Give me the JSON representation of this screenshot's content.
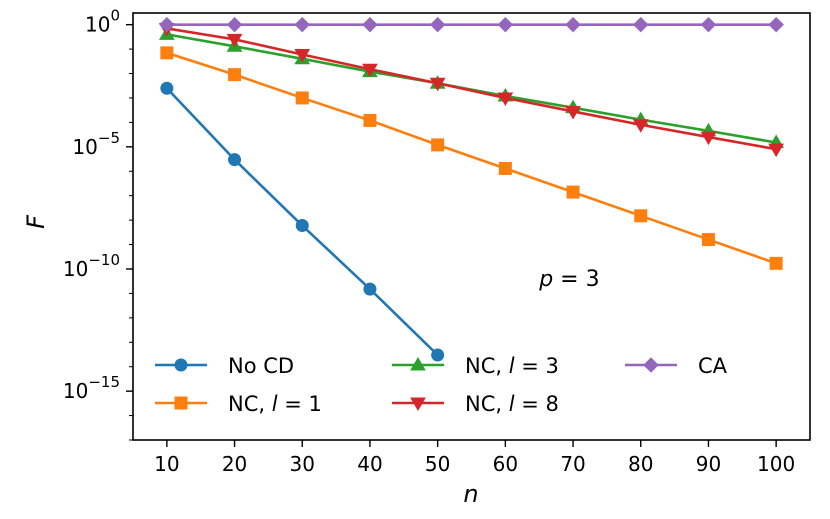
{
  "chart_data": {
    "type": "line",
    "title": "",
    "xlabel": "n",
    "ylabel": "F",
    "yscale": "log",
    "xlim": [
      5,
      105
    ],
    "ylim": [
      1e-17,
      3
    ],
    "x_ticks": [
      10,
      20,
      30,
      40,
      50,
      60,
      70,
      80,
      90,
      100
    ],
    "y_ticks": [
      {
        "value": 1,
        "base": "10",
        "exp": "0"
      },
      {
        "value": 1e-05,
        "base": "10",
        "exp": "−5"
      },
      {
        "value": 1e-10,
        "base": "10",
        "exp": "−10"
      },
      {
        "value": 1e-15,
        "base": "10",
        "exp": "−15"
      }
    ],
    "annotation": {
      "text": "p = 3",
      "var": "p",
      "rest": " = 3",
      "x": 65,
      "y": 2e-11
    },
    "legend_location": "lower-left",
    "series": [
      {
        "name": "No CD",
        "label_main": "No CD",
        "label_var": "",
        "label_rest": "",
        "color": "#1f77b4",
        "marker": "circle",
        "x": [
          10,
          20,
          30,
          40,
          50
        ],
        "y": [
          0.0025,
          3e-06,
          6e-09,
          1.5e-11,
          3e-14
        ]
      },
      {
        "name": "NC, l = 1",
        "label_main": "NC, ",
        "label_var": "l",
        "label_rest": " = 1",
        "color": "#ff7f0e",
        "marker": "square",
        "x": [
          10,
          20,
          30,
          40,
          50,
          60,
          70,
          80,
          90,
          100
        ],
        "y": [
          0.07,
          0.009,
          0.001,
          0.00012,
          1.2e-05,
          1.3e-06,
          1.4e-07,
          1.5e-08,
          1.6e-09,
          1.7e-10
        ]
      },
      {
        "name": "NC, l = 3",
        "label_main": "NC, ",
        "label_var": "l",
        "label_rest": " = 3",
        "color": "#2ca02c",
        "marker": "triangle-up",
        "x": [
          10,
          20,
          30,
          40,
          50,
          60,
          70,
          80,
          90,
          100
        ],
        "y": [
          0.4,
          0.13,
          0.04,
          0.012,
          0.004,
          0.0012,
          0.0004,
          0.00013,
          4.5e-05,
          1.5e-05
        ]
      },
      {
        "name": "NC, l = 8",
        "label_main": "NC, ",
        "label_var": "l",
        "label_rest": " = 8",
        "color": "#d62728",
        "marker": "triangle-down",
        "x": [
          10,
          20,
          30,
          40,
          50,
          60,
          70,
          80,
          90,
          100
        ],
        "y": [
          0.7,
          0.25,
          0.06,
          0.015,
          0.004,
          0.001,
          0.00028,
          8e-05,
          2.5e-05,
          8e-06
        ]
      },
      {
        "name": "CA",
        "label_main": "CA",
        "label_var": "",
        "label_rest": "",
        "color": "#9467bd",
        "marker": "diamond",
        "x": [
          10,
          20,
          30,
          40,
          50,
          60,
          70,
          80,
          90,
          100
        ],
        "y": [
          1,
          1,
          1,
          1,
          1,
          1,
          1,
          1,
          1,
          1
        ]
      }
    ]
  }
}
